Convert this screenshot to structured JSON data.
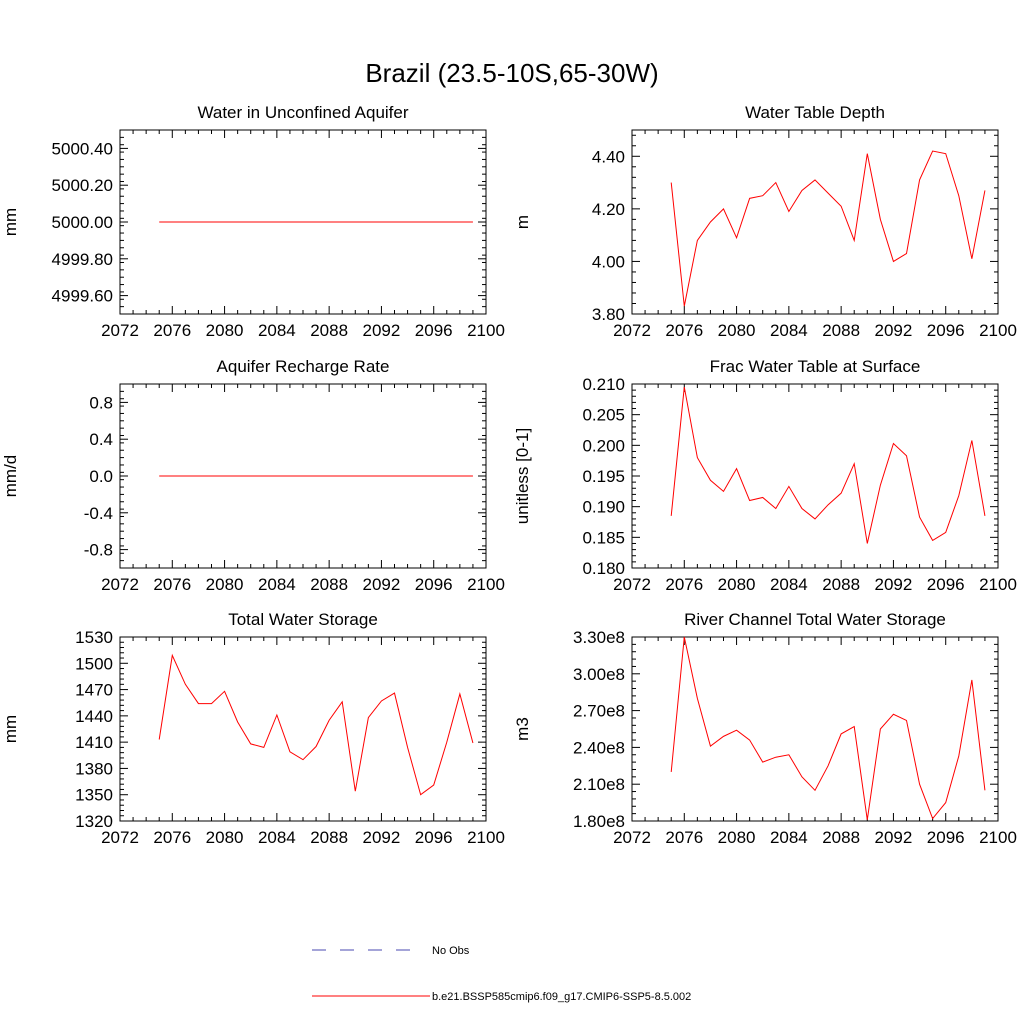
{
  "figure_title": "Brazil (23.5-10S,65-30W)",
  "legend": {
    "obs_label": "No Obs",
    "obs_color": "#4a4ab0",
    "model_label": "b.e21.BSSP585cmip6.f09_g17.CMIP6-SSP5-8.5.002",
    "model_color": "#ff0000"
  },
  "chart_data": [
    {
      "type": "line",
      "title": "Water in Unconfined Aquifer",
      "xlabel": "",
      "ylabel": "mm",
      "xlim": [
        2072,
        2100
      ],
      "ylim": [
        4999.5,
        5000.5
      ],
      "xticks": [
        2072,
        2076,
        2080,
        2084,
        2088,
        2092,
        2096,
        2100
      ],
      "xtick_labels": [
        "2072",
        "2076",
        "2080",
        "2084",
        "2088",
        "2092",
        "2096",
        "2100"
      ],
      "yticks": [
        4999.6,
        4999.8,
        5000.0,
        5000.2,
        5000.4
      ],
      "ytick_labels": [
        "4999.60",
        "4999.80",
        "5000.00",
        "5000.20",
        "5000.40"
      ],
      "x": [
        2075,
        2076,
        2077,
        2078,
        2079,
        2080,
        2081,
        2082,
        2083,
        2084,
        2085,
        2086,
        2087,
        2088,
        2089,
        2090,
        2091,
        2092,
        2093,
        2094,
        2095,
        2096,
        2097,
        2098,
        2099
      ],
      "series": [
        {
          "color": "#ff0000",
          "values": [
            5000,
            5000,
            5000,
            5000,
            5000,
            5000,
            5000,
            5000,
            5000,
            5000,
            5000,
            5000,
            5000,
            5000,
            5000,
            5000,
            5000,
            5000,
            5000,
            5000,
            5000,
            5000,
            5000,
            5000,
            5000
          ]
        }
      ]
    },
    {
      "type": "line",
      "title": "Water Table Depth",
      "xlabel": "",
      "ylabel": "m",
      "xlim": [
        2072,
        2100
      ],
      "ylim": [
        3.8,
        4.5
      ],
      "xticks": [
        2072,
        2076,
        2080,
        2084,
        2088,
        2092,
        2096,
        2100
      ],
      "xtick_labels": [
        "2072",
        "2076",
        "2080",
        "2084",
        "2088",
        "2092",
        "2096",
        "2100"
      ],
      "yticks": [
        3.8,
        4.0,
        4.2,
        4.4
      ],
      "ytick_labels": [
        "3.80",
        "4.00",
        "4.20",
        "4.40"
      ],
      "x": [
        2075,
        2076,
        2077,
        2078,
        2079,
        2080,
        2081,
        2082,
        2083,
        2084,
        2085,
        2086,
        2087,
        2088,
        2089,
        2090,
        2091,
        2092,
        2093,
        2094,
        2095,
        2096,
        2097,
        2098,
        2099
      ],
      "series": [
        {
          "color": "#ff0000",
          "values": [
            4.3,
            3.83,
            4.08,
            4.15,
            4.2,
            4.09,
            4.24,
            4.25,
            4.3,
            4.19,
            4.27,
            4.31,
            4.26,
            4.21,
            4.08,
            4.41,
            4.16,
            4.0,
            4.03,
            4.31,
            4.42,
            4.41,
            4.25,
            4.01,
            4.27
          ]
        }
      ]
    },
    {
      "type": "line",
      "title": "Aquifer Recharge Rate",
      "xlabel": "",
      "ylabel": "mm/d",
      "xlim": [
        2072,
        2100
      ],
      "ylim": [
        -1.0,
        1.0
      ],
      "xticks": [
        2072,
        2076,
        2080,
        2084,
        2088,
        2092,
        2096,
        2100
      ],
      "xtick_labels": [
        "2072",
        "2076",
        "2080",
        "2084",
        "2088",
        "2092",
        "2096",
        "2100"
      ],
      "yticks": [
        -0.8,
        -0.4,
        0.0,
        0.4,
        0.8
      ],
      "ytick_labels": [
        "-0.8",
        "-0.4",
        "0.0",
        "0.4",
        "0.8"
      ],
      "x": [
        2075,
        2076,
        2077,
        2078,
        2079,
        2080,
        2081,
        2082,
        2083,
        2084,
        2085,
        2086,
        2087,
        2088,
        2089,
        2090,
        2091,
        2092,
        2093,
        2094,
        2095,
        2096,
        2097,
        2098,
        2099
      ],
      "series": [
        {
          "color": "#ff0000",
          "values": [
            0,
            0,
            0,
            0,
            0,
            0,
            0,
            0,
            0,
            0,
            0,
            0,
            0,
            0,
            0,
            0,
            0,
            0,
            0,
            0,
            0,
            0,
            0,
            0,
            0
          ]
        }
      ]
    },
    {
      "type": "line",
      "title": "Frac Water Table at Surface",
      "xlabel": "",
      "ylabel": "unitless [0-1]",
      "xlim": [
        2072,
        2100
      ],
      "ylim": [
        0.18,
        0.21
      ],
      "xticks": [
        2072,
        2076,
        2080,
        2084,
        2088,
        2092,
        2096,
        2100
      ],
      "xtick_labels": [
        "2072",
        "2076",
        "2080",
        "2084",
        "2088",
        "2092",
        "2096",
        "2100"
      ],
      "yticks": [
        0.18,
        0.185,
        0.19,
        0.195,
        0.2,
        0.205,
        0.21
      ],
      "ytick_labels": [
        "0.180",
        "0.185",
        "0.190",
        "0.195",
        "0.200",
        "0.205",
        "0.210"
      ],
      "x": [
        2075,
        2076,
        2077,
        2078,
        2079,
        2080,
        2081,
        2082,
        2083,
        2084,
        2085,
        2086,
        2087,
        2088,
        2089,
        2090,
        2091,
        2092,
        2093,
        2094,
        2095,
        2096,
        2097,
        2098,
        2099
      ],
      "series": [
        {
          "color": "#ff0000",
          "values": [
            0.1885,
            0.2095,
            0.198,
            0.1943,
            0.1925,
            0.1962,
            0.191,
            0.1915,
            0.1897,
            0.1933,
            0.1897,
            0.188,
            0.1903,
            0.1922,
            0.197,
            0.184,
            0.1935,
            0.2003,
            0.1983,
            0.1883,
            0.1845,
            0.1858,
            0.1918,
            0.2008,
            0.1885
          ]
        }
      ]
    },
    {
      "type": "line",
      "title": "Total Water Storage",
      "xlabel": "",
      "ylabel": "mm",
      "xlim": [
        2072,
        2100
      ],
      "ylim": [
        1320,
        1530
      ],
      "xticks": [
        2072,
        2076,
        2080,
        2084,
        2088,
        2092,
        2096,
        2100
      ],
      "xtick_labels": [
        "2072",
        "2076",
        "2080",
        "2084",
        "2088",
        "2092",
        "2096",
        "2100"
      ],
      "yticks": [
        1320,
        1350,
        1380,
        1410,
        1440,
        1470,
        1500,
        1530
      ],
      "ytick_labels": [
        "1320",
        "1350",
        "1380",
        "1410",
        "1440",
        "1470",
        "1500",
        "1530"
      ],
      "x": [
        2075,
        2076,
        2077,
        2078,
        2079,
        2080,
        2081,
        2082,
        2083,
        2084,
        2085,
        2086,
        2087,
        2088,
        2089,
        2090,
        2091,
        2092,
        2093,
        2094,
        2095,
        2096,
        2097,
        2098,
        2099
      ],
      "series": [
        {
          "color": "#ff0000",
          "values": [
            1413,
            1509,
            1476,
            1454,
            1454,
            1468,
            1433,
            1408,
            1404,
            1441,
            1399,
            1390,
            1405,
            1435,
            1456,
            1354,
            1438,
            1457,
            1466,
            1404,
            1350,
            1361,
            1410,
            1465,
            1409
          ]
        }
      ]
    },
    {
      "type": "line",
      "title": "River Channel Total Water Storage",
      "xlabel": "",
      "ylabel": "m3",
      "xlim": [
        2072,
        2100
      ],
      "ylim": [
        180000000,
        330000000
      ],
      "xticks": [
        2072,
        2076,
        2080,
        2084,
        2088,
        2092,
        2096,
        2100
      ],
      "xtick_labels": [
        "2072",
        "2076",
        "2080",
        "2084",
        "2088",
        "2092",
        "2096",
        "2100"
      ],
      "yticks": [
        180000000,
        210000000,
        240000000,
        270000000,
        300000000,
        330000000
      ],
      "ytick_labels": [
        "1.80e8",
        "2.10e8",
        "2.40e8",
        "2.70e8",
        "3.00e8",
        "3.30e8"
      ],
      "x": [
        2075,
        2076,
        2077,
        2078,
        2079,
        2080,
        2081,
        2082,
        2083,
        2084,
        2085,
        2086,
        2087,
        2088,
        2089,
        2090,
        2091,
        2092,
        2093,
        2094,
        2095,
        2096,
        2097,
        2098,
        2099
      ],
      "series": [
        {
          "color": "#ff0000",
          "values": [
            220000000,
            330000000,
            280000000,
            241000000,
            249000000,
            254000000,
            246000000,
            228000000,
            232000000,
            234000000,
            216000000,
            205000000,
            225000000,
            251000000,
            257000000,
            181000000,
            255000000,
            267000000,
            262000000,
            210000000,
            182000000,
            195000000,
            233000000,
            295000000,
            205000000
          ]
        }
      ]
    }
  ]
}
